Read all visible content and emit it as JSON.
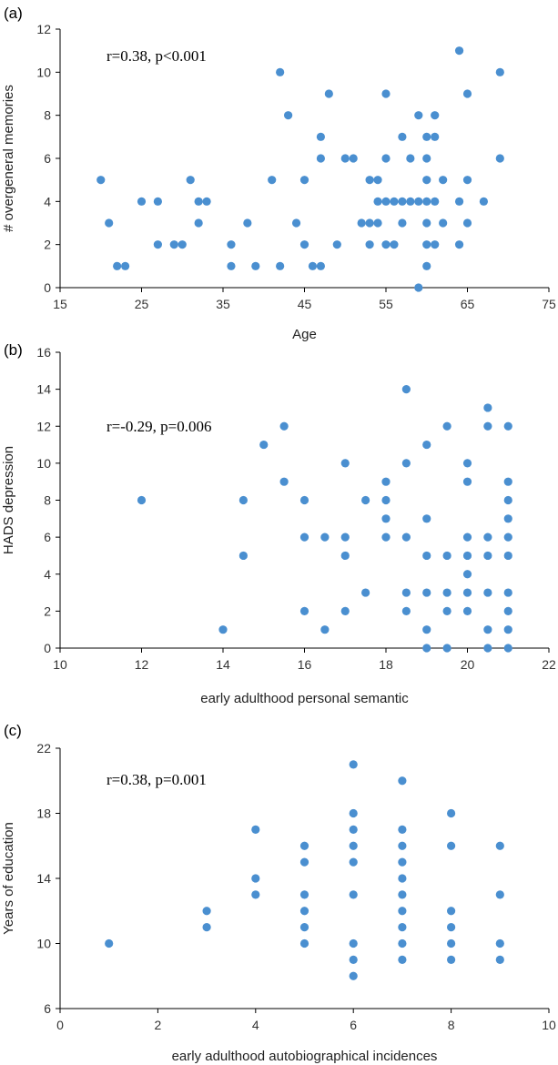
{
  "chart_data": [
    {
      "panel_label": "(a)",
      "type": "scatter",
      "annotation": "r=0.38, p<0.001",
      "xlabel": "Age",
      "ylabel": "# overgeneral memories",
      "xlim": [
        15,
        75
      ],
      "ylim": [
        0,
        12
      ],
      "xticks": [
        15,
        25,
        35,
        45,
        55,
        65,
        75
      ],
      "yticks": [
        0,
        2,
        4,
        6,
        8,
        10,
        12
      ],
      "color": "#4a8fd0",
      "points": [
        [
          20,
          5
        ],
        [
          21,
          3
        ],
        [
          22,
          1
        ],
        [
          23,
          1
        ],
        [
          25,
          4
        ],
        [
          27,
          4
        ],
        [
          27,
          2
        ],
        [
          29,
          2
        ],
        [
          30,
          2
        ],
        [
          31,
          5
        ],
        [
          32,
          4
        ],
        [
          32,
          3
        ],
        [
          33,
          4
        ],
        [
          36,
          2
        ],
        [
          36,
          1
        ],
        [
          38,
          3
        ],
        [
          39,
          1
        ],
        [
          41,
          5
        ],
        [
          42,
          10
        ],
        [
          42,
          1
        ],
        [
          43,
          8
        ],
        [
          44,
          3
        ],
        [
          45,
          5
        ],
        [
          45,
          2
        ],
        [
          46,
          1
        ],
        [
          47,
          7
        ],
        [
          47,
          6
        ],
        [
          47,
          1
        ],
        [
          48,
          9
        ],
        [
          49,
          2
        ],
        [
          50,
          6
        ],
        [
          51,
          6
        ],
        [
          52,
          3
        ],
        [
          53,
          5
        ],
        [
          53,
          3
        ],
        [
          53,
          2
        ],
        [
          54,
          5
        ],
        [
          54,
          4
        ],
        [
          54,
          3
        ],
        [
          55,
          4
        ],
        [
          55,
          9
        ],
        [
          55,
          6
        ],
        [
          55,
          2
        ],
        [
          56,
          4
        ],
        [
          56,
          2
        ],
        [
          57,
          4
        ],
        [
          57,
          7
        ],
        [
          57,
          3
        ],
        [
          58,
          4
        ],
        [
          58,
          6
        ],
        [
          59,
          8
        ],
        [
          59,
          0
        ],
        [
          59,
          4
        ],
        [
          60,
          7
        ],
        [
          60,
          6
        ],
        [
          60,
          5
        ],
        [
          60,
          4
        ],
        [
          60,
          3
        ],
        [
          60,
          2
        ],
        [
          60,
          1
        ],
        [
          61,
          8
        ],
        [
          61,
          7
        ],
        [
          61,
          4
        ],
        [
          61,
          2
        ],
        [
          62,
          5
        ],
        [
          62,
          3
        ],
        [
          64,
          11
        ],
        [
          64,
          4
        ],
        [
          64,
          2
        ],
        [
          65,
          9
        ],
        [
          65,
          5
        ],
        [
          65,
          3
        ],
        [
          67,
          4
        ],
        [
          69,
          10
        ],
        [
          69,
          6
        ]
      ]
    },
    {
      "panel_label": "(b)",
      "type": "scatter",
      "annotation": "r=-0.29, p=0.006",
      "xlabel": "early adulthood personal semantic",
      "ylabel": "HADS depression",
      "xlim": [
        10,
        22
      ],
      "ylim": [
        0,
        16
      ],
      "xticks": [
        10,
        12,
        14,
        16,
        18,
        20,
        22
      ],
      "yticks": [
        0,
        2,
        4,
        6,
        8,
        10,
        12,
        14,
        16
      ],
      "color": "#4a8fd0",
      "points": [
        [
          12,
          8
        ],
        [
          14,
          1
        ],
        [
          14.5,
          8
        ],
        [
          14.5,
          5
        ],
        [
          15,
          11
        ],
        [
          15.5,
          12
        ],
        [
          15.5,
          9
        ],
        [
          16,
          8
        ],
        [
          16,
          6
        ],
        [
          16,
          2
        ],
        [
          16.5,
          6
        ],
        [
          16.5,
          1
        ],
        [
          17,
          10
        ],
        [
          17,
          6
        ],
        [
          17,
          5
        ],
        [
          17,
          2
        ],
        [
          17.5,
          8
        ],
        [
          17.5,
          3
        ],
        [
          18,
          9
        ],
        [
          18,
          8
        ],
        [
          18,
          7
        ],
        [
          18,
          6
        ],
        [
          18.5,
          14
        ],
        [
          18.5,
          10
        ],
        [
          18.5,
          6
        ],
        [
          18.5,
          3
        ],
        [
          18.5,
          2
        ],
        [
          19,
          11
        ],
        [
          19,
          7
        ],
        [
          19,
          5
        ],
        [
          19,
          3
        ],
        [
          19,
          1
        ],
        [
          19,
          0
        ],
        [
          19.5,
          12
        ],
        [
          19.5,
          5
        ],
        [
          19.5,
          3
        ],
        [
          19.5,
          2
        ],
        [
          19.5,
          0
        ],
        [
          20,
          10
        ],
        [
          20,
          9
        ],
        [
          20,
          6
        ],
        [
          20,
          5
        ],
        [
          20,
          4
        ],
        [
          20,
          3
        ],
        [
          20,
          2
        ],
        [
          20.5,
          13
        ],
        [
          20.5,
          12
        ],
        [
          20.5,
          6
        ],
        [
          20.5,
          5
        ],
        [
          20.5,
          3
        ],
        [
          20.5,
          1
        ],
        [
          20.5,
          0
        ],
        [
          21,
          12
        ],
        [
          21,
          9
        ],
        [
          21,
          8
        ],
        [
          21,
          7
        ],
        [
          21,
          6
        ],
        [
          21,
          5
        ],
        [
          21,
          3
        ],
        [
          21,
          2
        ],
        [
          21,
          1
        ],
        [
          21,
          0
        ]
      ]
    },
    {
      "panel_label": "(c)",
      "type": "scatter",
      "annotation": "r=0.38, p=0.001",
      "xlabel": "early adulthood autobiographical incidences",
      "ylabel": "Years of education",
      "xlim": [
        0,
        10
      ],
      "ylim": [
        6,
        22
      ],
      "xticks": [
        0,
        2,
        4,
        6,
        8,
        10
      ],
      "yticks": [
        6,
        10,
        14,
        18,
        22
      ],
      "color": "#4a8fd0",
      "points": [
        [
          1,
          10
        ],
        [
          3,
          12
        ],
        [
          3,
          11
        ],
        [
          4,
          17
        ],
        [
          4,
          14
        ],
        [
          4,
          13
        ],
        [
          5,
          16
        ],
        [
          5,
          15
        ],
        [
          5,
          13
        ],
        [
          5,
          12
        ],
        [
          5,
          11
        ],
        [
          5,
          10
        ],
        [
          6,
          21
        ],
        [
          6,
          18
        ],
        [
          6,
          17
        ],
        [
          6,
          16
        ],
        [
          6,
          15
        ],
        [
          6,
          13
        ],
        [
          6,
          10
        ],
        [
          6,
          9
        ],
        [
          6,
          8
        ],
        [
          7,
          20
        ],
        [
          7,
          17
        ],
        [
          7,
          16
        ],
        [
          7,
          15
        ],
        [
          7,
          14
        ],
        [
          7,
          13
        ],
        [
          7,
          12
        ],
        [
          7,
          11
        ],
        [
          7,
          10
        ],
        [
          7,
          9
        ],
        [
          8,
          18
        ],
        [
          8,
          16
        ],
        [
          8,
          12
        ],
        [
          8,
          11
        ],
        [
          8,
          10
        ],
        [
          8,
          9
        ],
        [
          9,
          16
        ],
        [
          9,
          13
        ],
        [
          9,
          10
        ],
        [
          9,
          9
        ]
      ]
    }
  ]
}
